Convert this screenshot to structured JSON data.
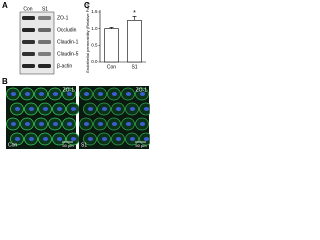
{
  "panels": {
    "a": "A",
    "b": "B",
    "c": "C"
  },
  "blot": {
    "lanes": [
      "Con",
      "S1"
    ],
    "proteins": [
      "ZO-1",
      "Occludin",
      "Claudin-1",
      "Claudin-5",
      "β-actin"
    ]
  },
  "images": [
    {
      "stain": "ZO-1",
      "condition": "Con",
      "scale": "50 µm"
    },
    {
      "stain": "ZO-1",
      "condition": "S1",
      "scale": "50 µm"
    }
  ],
  "chart_data": {
    "type": "bar",
    "ylabel": "Endothelial permeability (Relative Fold)",
    "categories": [
      "Con",
      "S1"
    ],
    "values": [
      1.0,
      1.25
    ],
    "errors": [
      0.04,
      0.12
    ],
    "annotation": "*",
    "color": "#ffffff",
    "ylim": [
      0,
      1.5
    ],
    "yticks": [
      {
        "value": 0,
        "label": "0.0"
      },
      0.5,
      {
        "value": 1,
        "label": "1.0"
      },
      1.5
    ]
  }
}
